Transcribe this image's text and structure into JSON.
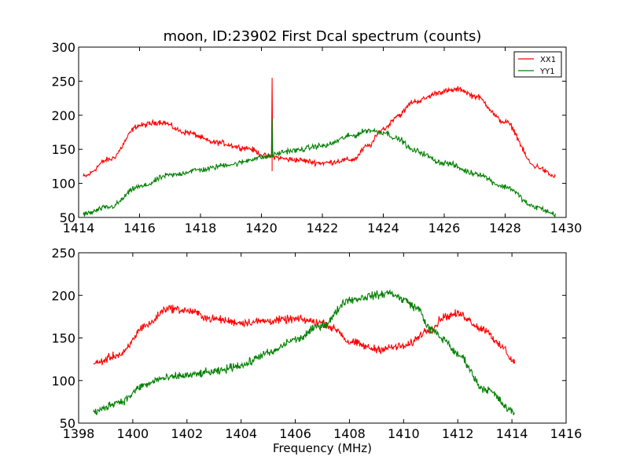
{
  "figure": {
    "title": "moon, ID:23902 First Dcal spectrum (counts)",
    "xlabel": "Frequency (MHz)"
  },
  "chart_data": [
    {
      "type": "line",
      "title": "moon, ID:23902 First Dcal spectrum (counts)",
      "xlabel": "",
      "ylabel": "",
      "xlim": [
        1414,
        1430
      ],
      "ylim": [
        50,
        300
      ],
      "xticks": [
        1414,
        1416,
        1418,
        1420,
        1422,
        1424,
        1426,
        1428,
        1430
      ],
      "yticks": [
        50,
        100,
        150,
        200,
        250,
        300
      ],
      "legend": {
        "placement": "top-right",
        "entries": [
          "XX1",
          "YY1"
        ]
      },
      "x_range": [
        1414.15,
        1429.65
      ],
      "noise": 6,
      "series": [
        {
          "name": "XX1",
          "color": "#ff0000",
          "x": [
            1414.15,
            1415.0,
            1416.0,
            1416.7,
            1417.5,
            1418.5,
            1419.5,
            1420.2,
            1421.0,
            1422.0,
            1423.0,
            1423.5,
            1424.0,
            1424.5,
            1425.0,
            1426.0,
            1426.5,
            1427.0,
            1428.0,
            1429.0,
            1429.65
          ],
          "values": [
            110,
            135,
            185,
            190,
            175,
            160,
            152,
            140,
            135,
            130,
            135,
            155,
            180,
            200,
            220,
            235,
            238,
            228,
            190,
            125,
            110
          ],
          "spikes": [
            {
              "x": 1420.35,
              "value": 255,
              "base": 118
            }
          ]
        },
        {
          "name": "YY1",
          "color": "#008000",
          "x": [
            1414.15,
            1415.0,
            1416.0,
            1417.0,
            1418.0,
            1419.0,
            1420.0,
            1421.0,
            1422.0,
            1423.0,
            1423.5,
            1424.0,
            1424.5,
            1425.0,
            1426.0,
            1427.0,
            1428.0,
            1429.0,
            1429.65
          ],
          "values": [
            55,
            65,
            95,
            112,
            120,
            128,
            138,
            148,
            155,
            170,
            178,
            175,
            165,
            148,
            130,
            115,
            95,
            65,
            55
          ],
          "spikes": [
            {
              "x": 1420.35,
              "value": 195,
              "base": 138
            }
          ]
        }
      ]
    },
    {
      "type": "line",
      "title": "",
      "xlabel": "Frequency (MHz)",
      "ylabel": "",
      "xlim": [
        1398,
        1416
      ],
      "ylim": [
        50,
        250
      ],
      "xticks": [
        1398,
        1400,
        1402,
        1404,
        1406,
        1408,
        1410,
        1412,
        1414,
        1416
      ],
      "yticks": [
        50,
        100,
        150,
        200,
        250
      ],
      "x_range": [
        1398.55,
        1414.1
      ],
      "noise": 7,
      "series": [
        {
          "name": "",
          "color": "#ff0000",
          "x": [
            1398.55,
            1399.5,
            1400.5,
            1401.3,
            1402.0,
            1403.0,
            1404.0,
            1405.0,
            1406.0,
            1407.0,
            1407.5,
            1408.0,
            1409.0,
            1410.0,
            1411.0,
            1411.5,
            1412.0,
            1413.0,
            1413.6,
            1414.1
          ],
          "values": [
            120,
            130,
            165,
            185,
            182,
            172,
            168,
            170,
            172,
            168,
            160,
            145,
            137,
            140,
            160,
            175,
            178,
            160,
            140,
            122
          ],
          "spikes": []
        },
        {
          "name": "",
          "color": "#008000",
          "x": [
            1398.55,
            1399.5,
            1400.5,
            1401.0,
            1402.0,
            1403.0,
            1404.0,
            1405.0,
            1406.0,
            1407.0,
            1408.0,
            1409.0,
            1409.5,
            1410.0,
            1410.5,
            1411.0,
            1411.5,
            1412.0,
            1413.0,
            1414.1
          ],
          "values": [
            63,
            75,
            95,
            102,
            106,
            110,
            118,
            132,
            148,
            165,
            195,
            200,
            203,
            195,
            185,
            160,
            148,
            130,
            90,
            63
          ],
          "spikes": []
        }
      ]
    }
  ]
}
